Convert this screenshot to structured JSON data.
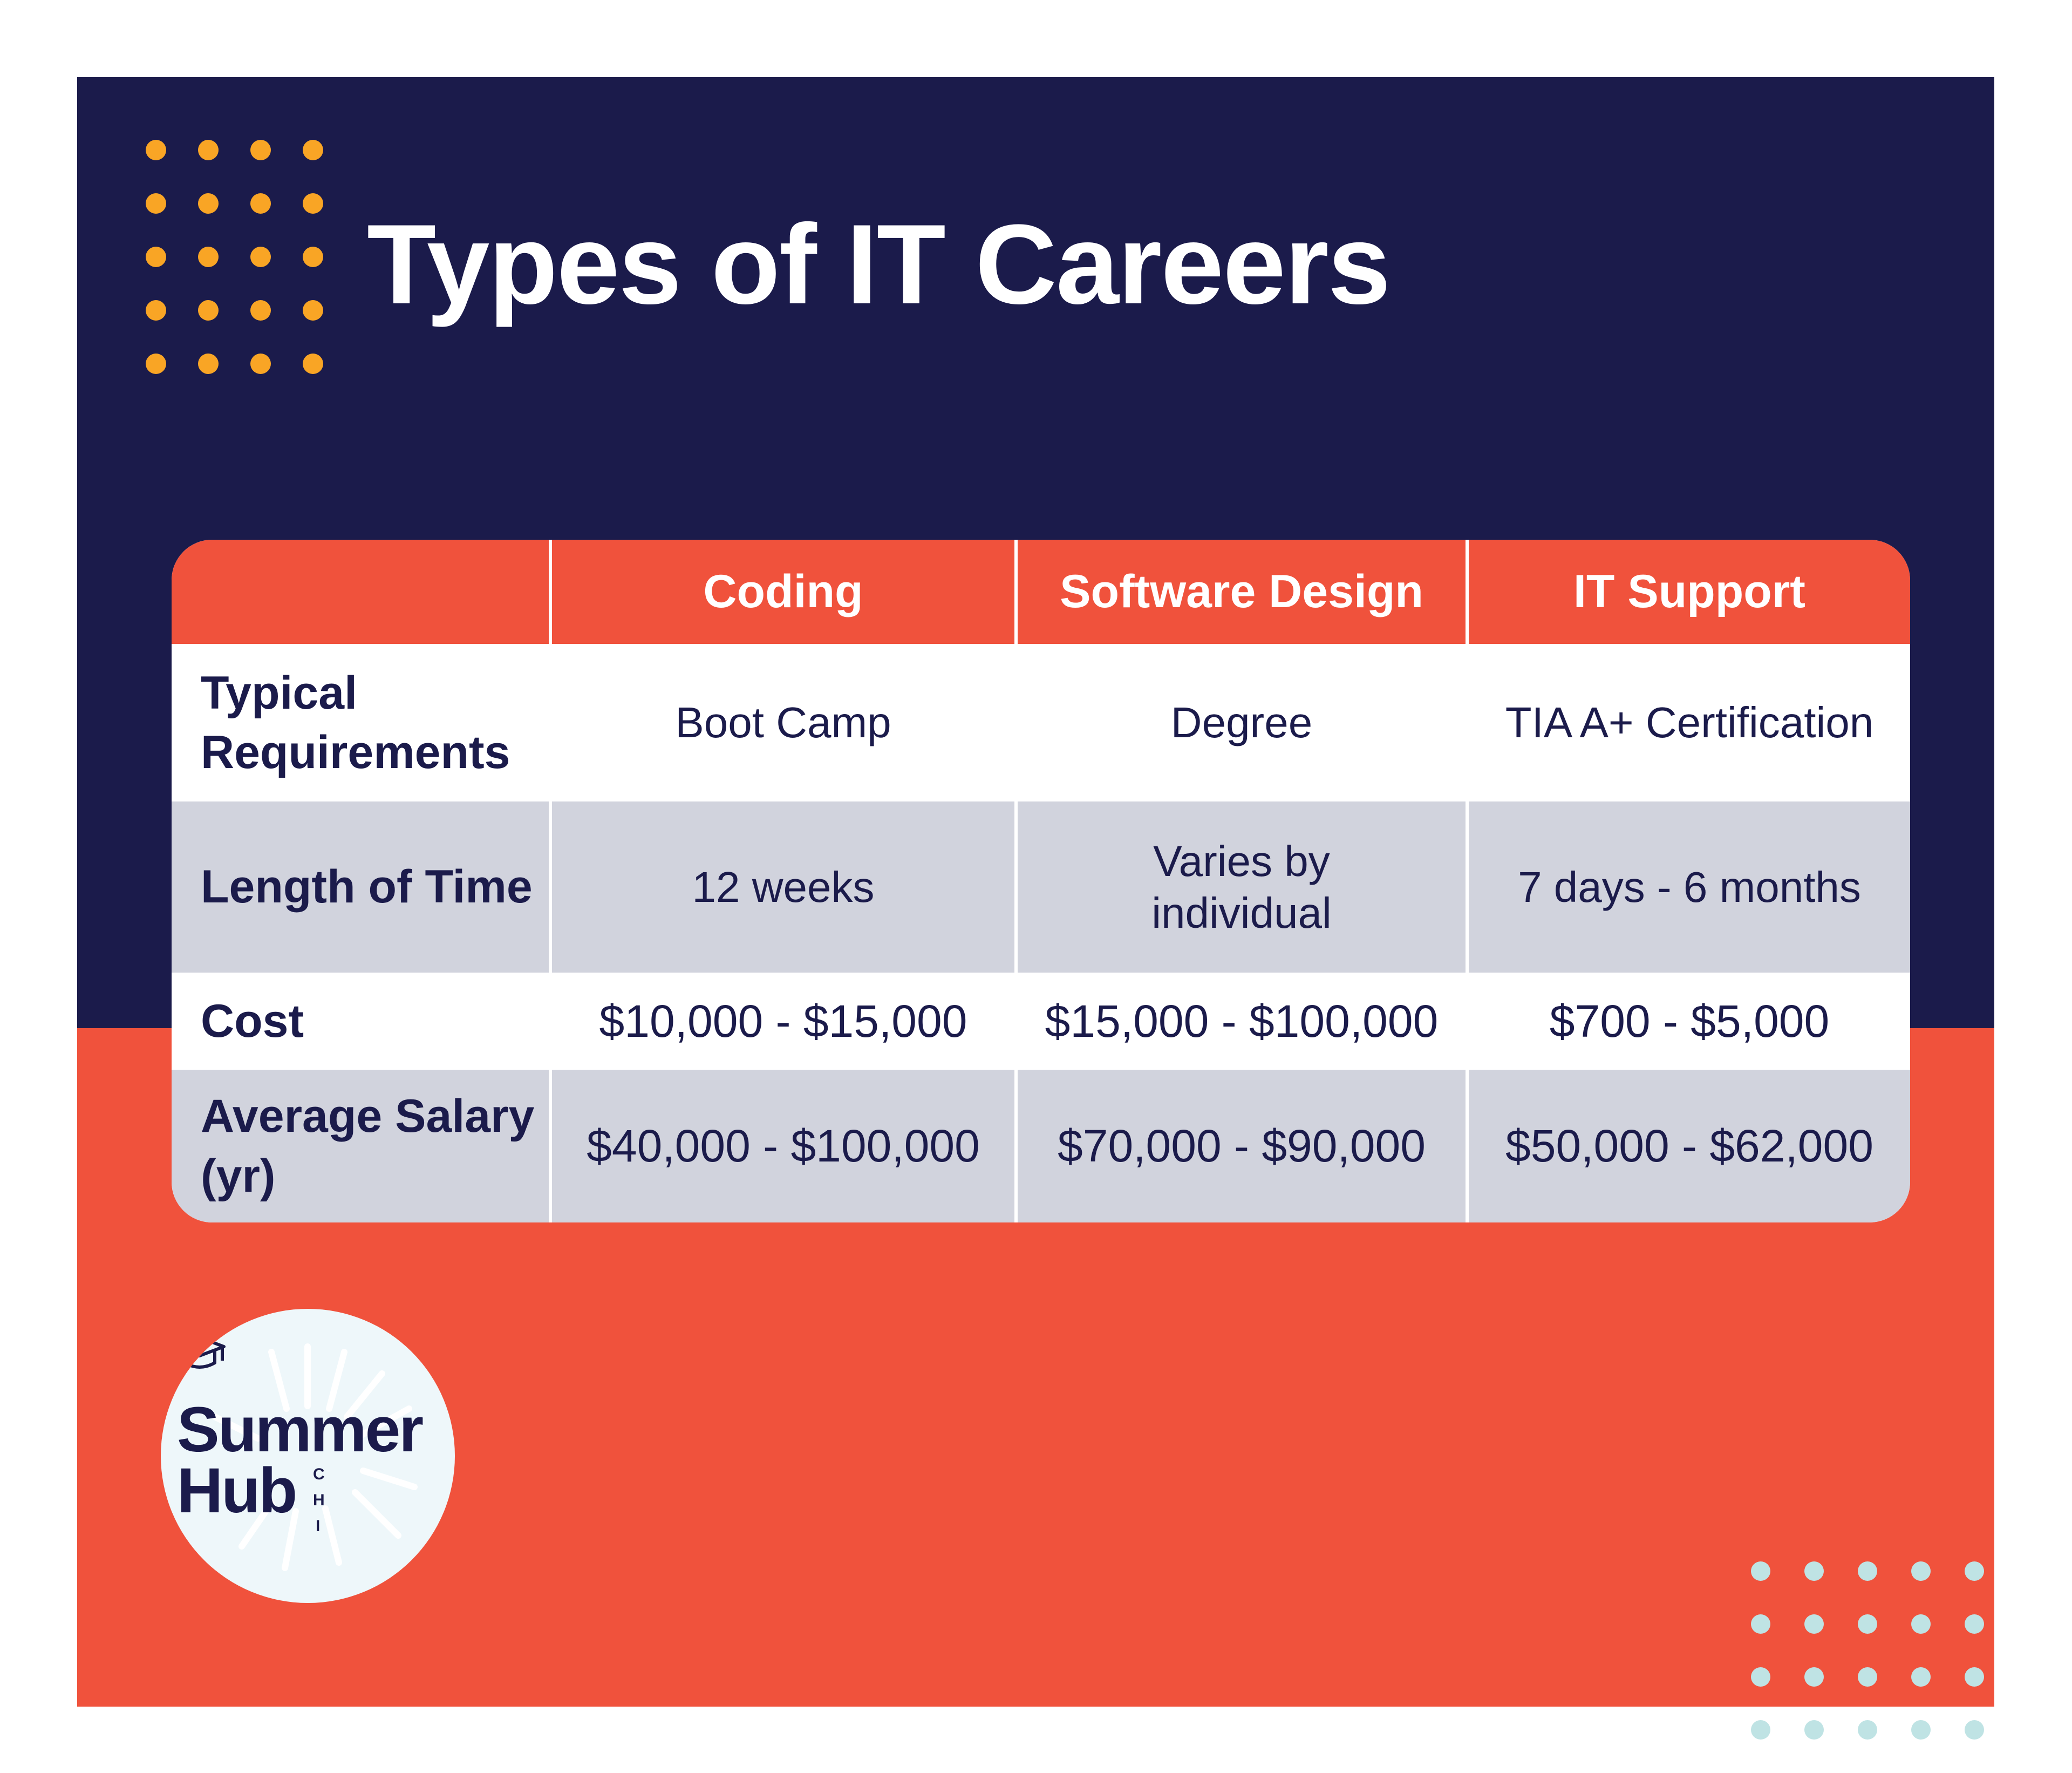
{
  "title": "Types of IT Careers",
  "colors": {
    "navy": "#1b1b4b",
    "coral": "#f0523c",
    "orange_dots": "#f9a525",
    "teal_dots": "#bfe3e4",
    "row_gray": "#d1d3dd"
  },
  "table": {
    "columns": [
      "",
      "Coding",
      "Software Design",
      "IT Support"
    ],
    "rows": [
      {
        "label": "Typical Requirements",
        "values": [
          "Boot Camp",
          "Degree",
          "TIA A+ Certification"
        ]
      },
      {
        "label": "Length of Time",
        "values": [
          "12 weeks",
          "Varies by individual",
          "7 days - 6 months"
        ]
      },
      {
        "label": "Cost",
        "values": [
          "$10,000 - $15,000",
          "$15,000 - $100,000",
          "$700 - $5,000"
        ]
      },
      {
        "label": "Average Salary (yr)",
        "values": [
          "$40,000 - $100,000",
          "$70,000 - $90,000",
          "$50,000 - $62,000"
        ]
      }
    ]
  },
  "logo": {
    "line1": "Summer",
    "line2": "Hub",
    "letters": [
      "C",
      "H",
      "I"
    ],
    "icon": "graduation-cap-icon"
  }
}
